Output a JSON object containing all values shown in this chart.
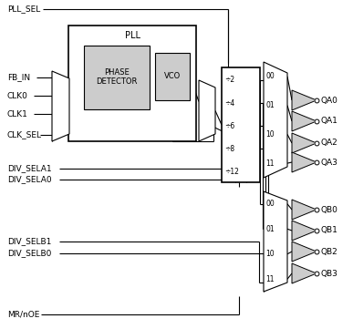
{
  "bg_color": "#ffffff",
  "line_color": "#000000",
  "box_fill": "#cccccc",
  "font_size": 6.5,
  "QA_outputs": [
    "QA0",
    "QA1",
    "QA2",
    "QA3"
  ],
  "QB_outputs": [
    "QB0",
    "QB1",
    "QB2",
    "QB3"
  ],
  "div_labels": [
    "÷2",
    "÷4",
    "÷6",
    "÷8",
    "÷12"
  ],
  "mux_labels_A": [
    "00",
    "01",
    "10",
    "11"
  ],
  "mux_labels_B": [
    "00",
    "01",
    "10",
    "11"
  ],
  "pll_sel": "PLL_SEL",
  "fb_in": "FB_IN",
  "clk0": "CLK0",
  "clk1": "CLK1",
  "clk_sel": "CLK_SEL",
  "div_sela1": "DIV_SELA1",
  "div_sela0": "DIV_SELA0",
  "div_selb1": "DIV_SELB1",
  "div_selb0": "DIV_SELB0",
  "mroe": "MR/nOE",
  "pll_label": "PLL",
  "phase_det": [
    "PHASE",
    "DETECTOR"
  ],
  "vco": "VCO"
}
